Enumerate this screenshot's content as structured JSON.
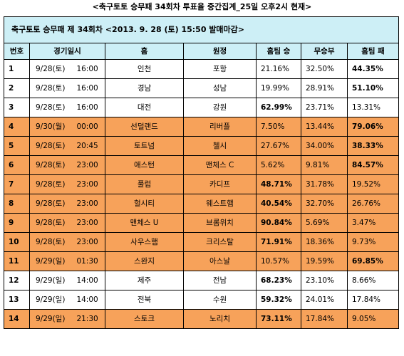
{
  "title": "<축구토토 승무패 34회차 투표율 중간집계_25일 오후2시 현재>",
  "banner": "축구토토 승무패 제 34회차  <2013. 9. 28 (토) 15:50 발매마감>",
  "headers": [
    "번호",
    "경기일시",
    "홈",
    "원정",
    "홈팀 승",
    "무승부",
    "홈팀 패"
  ],
  "highlight_color": "#f7a25a",
  "header_color": "#cdeff6",
  "rows": [
    {
      "no": "1",
      "date": "9/28(토)",
      "time": "16:00",
      "home": "인천",
      "away": "포항",
      "win": "21.16%",
      "draw": "32.50%",
      "lose": "44.35%",
      "bold": "lose",
      "highlight": false
    },
    {
      "no": "2",
      "date": "9/28(토)",
      "time": "16:00",
      "home": "경남",
      "away": "성남",
      "win": "19.99%",
      "draw": "28.91%",
      "lose": "51.10%",
      "bold": "lose",
      "highlight": false
    },
    {
      "no": "3",
      "date": "9/28(토)",
      "time": "16:00",
      "home": "대전",
      "away": "강원",
      "win": "62.99%",
      "draw": "23.71%",
      "lose": "13.31%",
      "bold": "win",
      "highlight": false
    },
    {
      "no": "4",
      "date": "9/30(월)",
      "time": "00:00",
      "home": "선덜랜드",
      "away": "리버플",
      "win": "7.50%",
      "draw": "13.44%",
      "lose": "79.06%",
      "bold": "lose",
      "highlight": true
    },
    {
      "no": "5",
      "date": "9/28(토)",
      "time": "20:45",
      "home": "토트넘",
      "away": "첼시",
      "win": "27.67%",
      "draw": "34.00%",
      "lose": "38.33%",
      "bold": "lose",
      "highlight": true
    },
    {
      "no": "6",
      "date": "9/28(토)",
      "time": "23:00",
      "home": "애스턴",
      "away": "맨체스 C",
      "win": "5.62%",
      "draw": "9.81%",
      "lose": "84.57%",
      "bold": "lose",
      "highlight": true
    },
    {
      "no": "7",
      "date": "9/28(토)",
      "time": "23:00",
      "home": "풀럼",
      "away": "카디프",
      "win": "48.71%",
      "draw": "31.78%",
      "lose": "19.52%",
      "bold": "win",
      "highlight": true
    },
    {
      "no": "8",
      "date": "9/28(토)",
      "time": "23:00",
      "home": "헐시티",
      "away": "웨스트햄",
      "win": "40.54%",
      "draw": "32.70%",
      "lose": "26.76%",
      "bold": "win",
      "highlight": true
    },
    {
      "no": "9",
      "date": "9/28(토)",
      "time": "23:00",
      "home": "맨체스 U",
      "away": "브롬위치",
      "win": "90.84%",
      "draw": "5.69%",
      "lose": "3.47%",
      "bold": "win",
      "highlight": true
    },
    {
      "no": "10",
      "date": "9/28(토)",
      "time": "23:00",
      "home": "사우스햄",
      "away": "크리스탈",
      "win": "71.91%",
      "draw": "18.36%",
      "lose": "9.73%",
      "bold": "win",
      "highlight": true
    },
    {
      "no": "11",
      "date": "9/29(일)",
      "time": "01:30",
      "home": "스완지",
      "away": "아스날",
      "win": "10.57%",
      "draw": "19.59%",
      "lose": "69.85%",
      "bold": "lose",
      "highlight": true
    },
    {
      "no": "12",
      "date": "9/29(일)",
      "time": "14:00",
      "home": "제주",
      "away": "전남",
      "win": "68.23%",
      "draw": "23.10%",
      "lose": "8.66%",
      "bold": "win",
      "highlight": false
    },
    {
      "no": "13",
      "date": "9/29(일)",
      "time": "14:00",
      "home": "전북",
      "away": "수원",
      "win": "59.32%",
      "draw": "24.01%",
      "lose": "17.84%",
      "bold": "win",
      "highlight": false
    },
    {
      "no": "14",
      "date": "9/29(일)",
      "time": "21:30",
      "home": "스토크",
      "away": "노리치",
      "win": "73.11%",
      "draw": "17.84%",
      "lose": "9.05%",
      "bold": "win",
      "highlight": true
    }
  ]
}
